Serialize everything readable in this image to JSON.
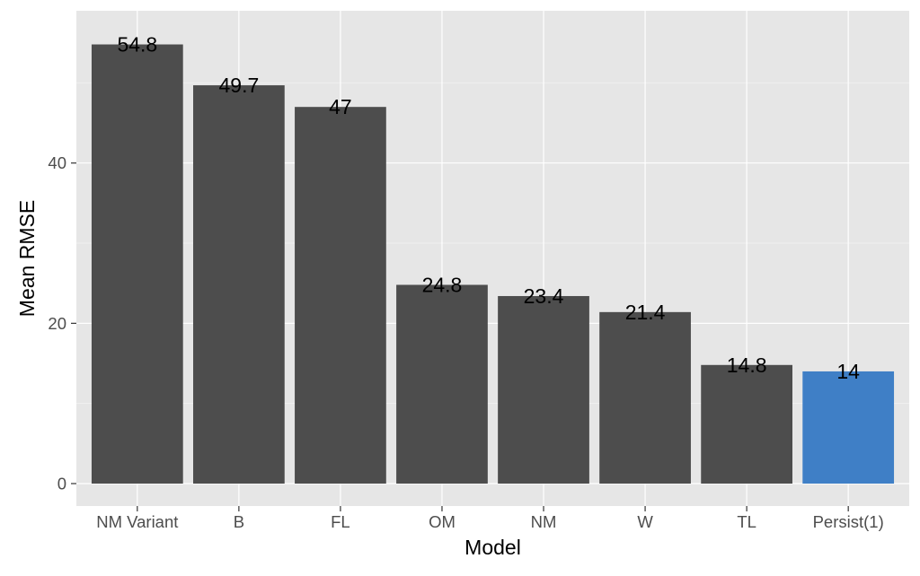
{
  "chart_data": {
    "type": "bar",
    "title": "",
    "xlabel": "Model",
    "ylabel": "Mean RMSE",
    "categories": [
      "NM Variant",
      "B",
      "FL",
      "OM",
      "NM",
      "W",
      "TL",
      "Persist(1)"
    ],
    "values": [
      54.8,
      49.7,
      47,
      24.8,
      23.4,
      21.4,
      14.8,
      14
    ],
    "value_labels": [
      "54.8",
      "49.7",
      "47",
      "24.8",
      "23.4",
      "21.4",
      "14.8",
      "14"
    ],
    "highlight": "Persist(1)",
    "colors": {
      "bar": "#4d4d4d",
      "highlight": "#3f7fc6",
      "panel_background": "#e6e6e6",
      "grid_major": "#ffffff",
      "grid_minor": "#f0f0f0",
      "tick_text": "#4d4d4d",
      "axis_title": "#000000",
      "value_label": "#000000"
    },
    "yticks": [
      0,
      20,
      40
    ],
    "ylim": [
      -2.8,
      59
    ],
    "grid": true,
    "legend": "none"
  }
}
